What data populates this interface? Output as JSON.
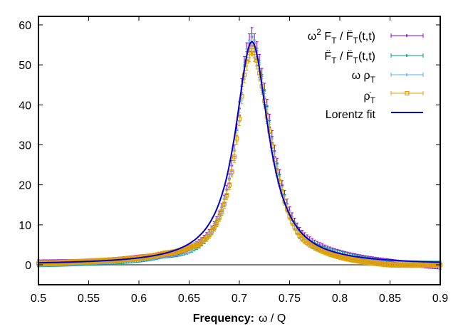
{
  "chart_data": {
    "type": "line",
    "title": "",
    "xlabel_bold": "Frequency:",
    "xlabel_rest": "ω / Q",
    "ylabel": "",
    "xlim": [
      0.5,
      0.9
    ],
    "ylim": [
      -5,
      62
    ],
    "xticks": [
      "0.5",
      "0.55",
      "0.6",
      "0.65",
      "0.7",
      "0.75",
      "0.8",
      "0.85",
      "0.9"
    ],
    "yticks": [
      "0",
      "10",
      "20",
      "30",
      "40",
      "50",
      "60"
    ],
    "grid": false,
    "zero_line": true,
    "legend_position": "top-right",
    "fit": {
      "name": "Lorentz fit",
      "amplitude": 55.8,
      "center": 0.7125,
      "half_width": 0.0202,
      "color": "#0000cc"
    },
    "series": [
      {
        "name": "ω² F_T / F̈_T(t,t)",
        "color": "#9400d3",
        "marker": "+",
        "x": [
          0.5,
          0.55,
          0.6,
          0.625,
          0.65,
          0.67,
          0.68,
          0.69,
          0.695,
          0.7,
          0.705,
          0.71,
          0.7125,
          0.715,
          0.72,
          0.725,
          0.73,
          0.74,
          0.75,
          0.76,
          0.78,
          0.8,
          0.85,
          0.9
        ],
        "values": [
          0.6,
          0.8,
          1.8,
          2.6,
          4.2,
          8.0,
          12.5,
          21.5,
          28.5,
          39,
          50,
          55.5,
          57,
          55.5,
          50.5,
          43.5,
          36,
          22.5,
          13.5,
          8.5,
          4.8,
          3.0,
          0.8,
          -0.5
        ]
      },
      {
        "name": "F̈_T / F̈_T(t,t)",
        "color": "#009e73",
        "marker": "x",
        "x": [
          0.5,
          0.55,
          0.6,
          0.625,
          0.65,
          0.67,
          0.68,
          0.69,
          0.695,
          0.7,
          0.705,
          0.71,
          0.7125,
          0.715,
          0.72,
          0.725,
          0.73,
          0.74,
          0.75,
          0.76,
          0.78,
          0.8,
          0.85,
          0.9
        ],
        "values": [
          0.1,
          0.5,
          1.3,
          2.4,
          3.6,
          7.5,
          12,
          20.5,
          27.5,
          37.5,
          48.5,
          54,
          55.5,
          54,
          49,
          42,
          34.5,
          21.5,
          12.5,
          7.5,
          4.3,
          2.8,
          0.5,
          0.3
        ]
      },
      {
        "name": "ω ρ_T",
        "color": "#56b4e9",
        "marker": "*",
        "x": [
          0.5,
          0.55,
          0.6,
          0.625,
          0.65,
          0.67,
          0.68,
          0.69,
          0.695,
          0.7,
          0.705,
          0.71,
          0.7125,
          0.715,
          0.72,
          0.725,
          0.73,
          0.74,
          0.75,
          0.76,
          0.78,
          0.8,
          0.85,
          0.9
        ],
        "values": [
          0.2,
          0.7,
          1.6,
          2.5,
          3.9,
          7.6,
          12,
          20.5,
          27.5,
          37.5,
          48.5,
          54,
          55,
          54,
          48.5,
          41.5,
          34,
          21,
          12.5,
          7.6,
          4.0,
          2.3,
          0.3,
          0.0
        ]
      },
      {
        "name": "ρ̇_T",
        "color": "#e69f00",
        "marker": "square",
        "x": [
          0.5,
          0.55,
          0.6,
          0.625,
          0.65,
          0.67,
          0.68,
          0.69,
          0.695,
          0.7,
          0.705,
          0.71,
          0.7125,
          0.715,
          0.72,
          0.725,
          0.73,
          0.74,
          0.75,
          0.76,
          0.78,
          0.8,
          0.85,
          0.9
        ],
        "values": [
          0.3,
          0.9,
          1.7,
          2.8,
          4.3,
          7.5,
          11.8,
          20,
          27,
          36.5,
          47.5,
          53,
          54.5,
          53,
          48,
          41,
          33.5,
          20.8,
          12.2,
          7.3,
          3.8,
          2.0,
          0.0,
          0.0
        ]
      }
    ]
  },
  "legend": {
    "items": [
      {
        "main": "ω",
        "sup": "2",
        "rest": " F",
        "sub1": "T",
        "mid": " / F̈",
        "sub2": "T",
        "tail": "(t,t)",
        "color": "#9400d3"
      },
      {
        "main": "F̈",
        "sub1": "T",
        "mid": " / F̈",
        "sub2": "T",
        "tail": "(t,t)",
        "color": "#009e73"
      },
      {
        "main": "ω ρ",
        "sub1": "T",
        "color": "#56b4e9"
      },
      {
        "main": "ρ̇",
        "sub1": "T",
        "color": "#e69f00"
      },
      {
        "main": "Lorentz fit",
        "color": "#0000cc"
      }
    ]
  }
}
